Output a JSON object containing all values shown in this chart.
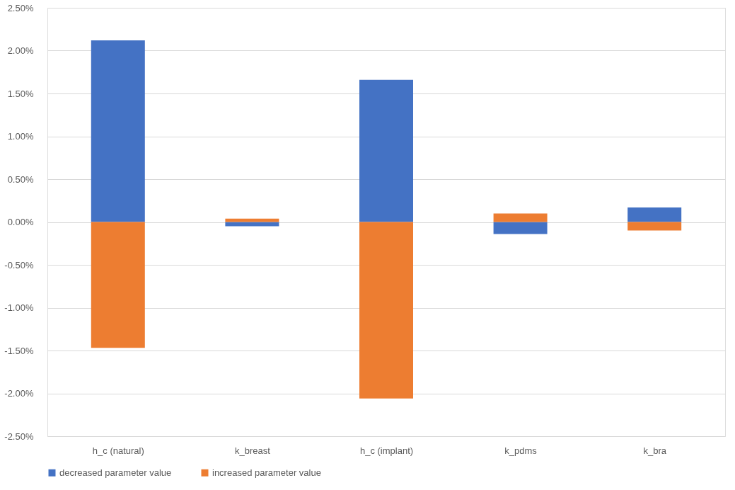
{
  "chart_data": {
    "type": "bar",
    "stacked": true,
    "categories": [
      "h_c (natural)",
      "k_breast",
      "h_c (implant)",
      "k_pdms",
      "k_bra"
    ],
    "series": [
      {
        "name": "decreased parameter value",
        "color": "#4472c4",
        "values": [
          2.12,
          -0.05,
          1.66,
          -0.14,
          0.17
        ]
      },
      {
        "name": "increased parameter value",
        "color": "#ed7d31",
        "values": [
          -1.47,
          0.04,
          -2.06,
          0.1,
          -0.1
        ]
      }
    ],
    "ylim": [
      -2.5,
      2.5
    ],
    "yticks": [
      {
        "value": -2.5,
        "label": "-2.50%"
      },
      {
        "value": -2.0,
        "label": "-2.00%"
      },
      {
        "value": -1.5,
        "label": "-1.50%"
      },
      {
        "value": -1.0,
        "label": "-1.00%"
      },
      {
        "value": -0.5,
        "label": "-0.50%"
      },
      {
        "value": 0.0,
        "label": "0.00%"
      },
      {
        "value": 0.5,
        "label": "0.50%"
      },
      {
        "value": 1.0,
        "label": "1.00%"
      },
      {
        "value": 1.5,
        "label": "1.50%"
      },
      {
        "value": 2.0,
        "label": "2.00%"
      },
      {
        "value": 2.5,
        "label": "2.50%"
      }
    ],
    "grid": "y",
    "legend": "bottom"
  }
}
